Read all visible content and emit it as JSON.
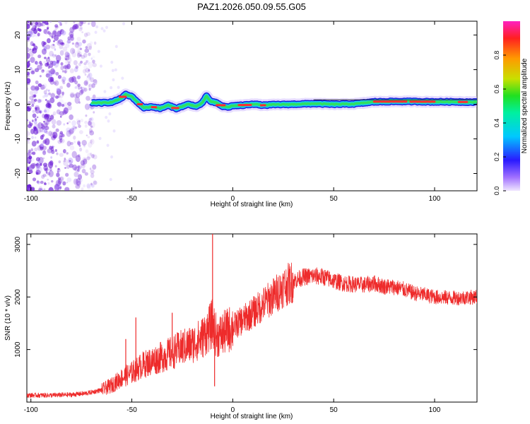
{
  "title": "PAZ1.2026.050.09.55.G05",
  "colors": {
    "line": "#ee2b2b",
    "scatter": "#6a1bd6",
    "track": [
      "#1a1adf",
      "#18c8f0",
      "#2fe060",
      "#ff2b30"
    ]
  },
  "colorbar": {
    "label": "Normalized spectral amplitude",
    "ticks": [
      "0.0",
      "0.2",
      "0.4",
      "0.6",
      "0.8"
    ],
    "tick_values": [
      0.0,
      0.2,
      0.4,
      0.6,
      0.8
    ],
    "range": [
      0,
      1
    ]
  },
  "chart_data": [
    {
      "type": "heatmap",
      "xlabel": "Height of straight line (km)",
      "ylabel": "Frequency (Hz)",
      "xlim": [
        -102,
        121
      ],
      "ylim": [
        -25,
        24
      ],
      "xticks": [
        "-100",
        "-50",
        "0",
        "50",
        "100"
      ],
      "xtick_values": [
        -100,
        -50,
        0,
        50,
        100
      ],
      "yticks": [
        "20",
        "10",
        "0",
        "-10",
        "-20"
      ],
      "ytick_values": [
        20,
        10,
        0,
        -10,
        -20
      ],
      "noise_region_x": [
        -102,
        -68
      ],
      "ridge": {
        "x": [
          -70,
          -65,
          -60,
          -56,
          -53,
          -50,
          -47,
          -44,
          -40,
          -36,
          -32,
          -28,
          -25,
          -22,
          -18,
          -15,
          -13,
          -11,
          -8,
          -5,
          -2,
          0,
          5,
          10,
          15,
          20,
          30,
          40,
          50,
          60,
          70,
          80,
          90,
          100,
          110,
          121
        ],
        "y": [
          0.5,
          0.4,
          0.6,
          1.5,
          2.8,
          2.2,
          0.5,
          -1.0,
          -0.7,
          -1.2,
          -0.3,
          -1.2,
          -0.6,
          0,
          -0.6,
          0.4,
          2.4,
          0.8,
          0.4,
          -0.6,
          -0.8,
          -0.4,
          -0.3,
          0.1,
          -0.3,
          -0.1,
          0,
          0.2,
          0,
          0.1,
          0.7,
          0.8,
          0.8,
          0.7,
          0.7,
          0.6
        ]
      }
    },
    {
      "type": "line",
      "xlabel": "Height of straight line (km)",
      "ylabel": "SNR (10 * v/v)",
      "xlim": [
        -102,
        121
      ],
      "ylim": [
        0,
        3200
      ],
      "xticks": [
        "-100",
        "-50",
        "0",
        "50",
        "100"
      ],
      "xtick_values": [
        -100,
        -50,
        0,
        50,
        100
      ],
      "yticks": [
        "3000",
        "2000",
        "1000"
      ],
      "ytick_values": [
        3000,
        2000,
        1000
      ],
      "series": [
        {
          "name": "SNR",
          "x": [
            -102,
            -90,
            -80,
            -72,
            -65,
            -60,
            -55,
            -50,
            -45,
            -40,
            -35,
            -30,
            -25,
            -20,
            -15,
            -12,
            -10,
            -8,
            -5,
            0,
            5,
            10,
            15,
            20,
            25,
            30,
            35,
            40,
            45,
            50,
            55,
            60,
            65,
            70,
            75,
            80,
            85,
            90,
            95,
            100,
            105,
            110,
            115,
            121
          ],
          "y": [
            130,
            130,
            140,
            170,
            230,
            320,
            460,
            560,
            700,
            780,
            860,
            940,
            1040,
            1100,
            1230,
            1380,
            1500,
            1240,
            1300,
            1430,
            1560,
            1700,
            1860,
            2010,
            2190,
            2300,
            2380,
            2400,
            2380,
            2310,
            2260,
            2240,
            2230,
            2260,
            2200,
            2190,
            2140,
            2070,
            2040,
            2000,
            1990,
            1980,
            1990,
            2000
          ]
        }
      ],
      "spikes": [
        {
          "x": -53,
          "y": 1200
        },
        {
          "x": -48,
          "y": 1610
        },
        {
          "x": -30,
          "y": 1700
        },
        {
          "x": -10,
          "y": 3200
        },
        {
          "x": -9,
          "y": 300
        }
      ]
    }
  ]
}
